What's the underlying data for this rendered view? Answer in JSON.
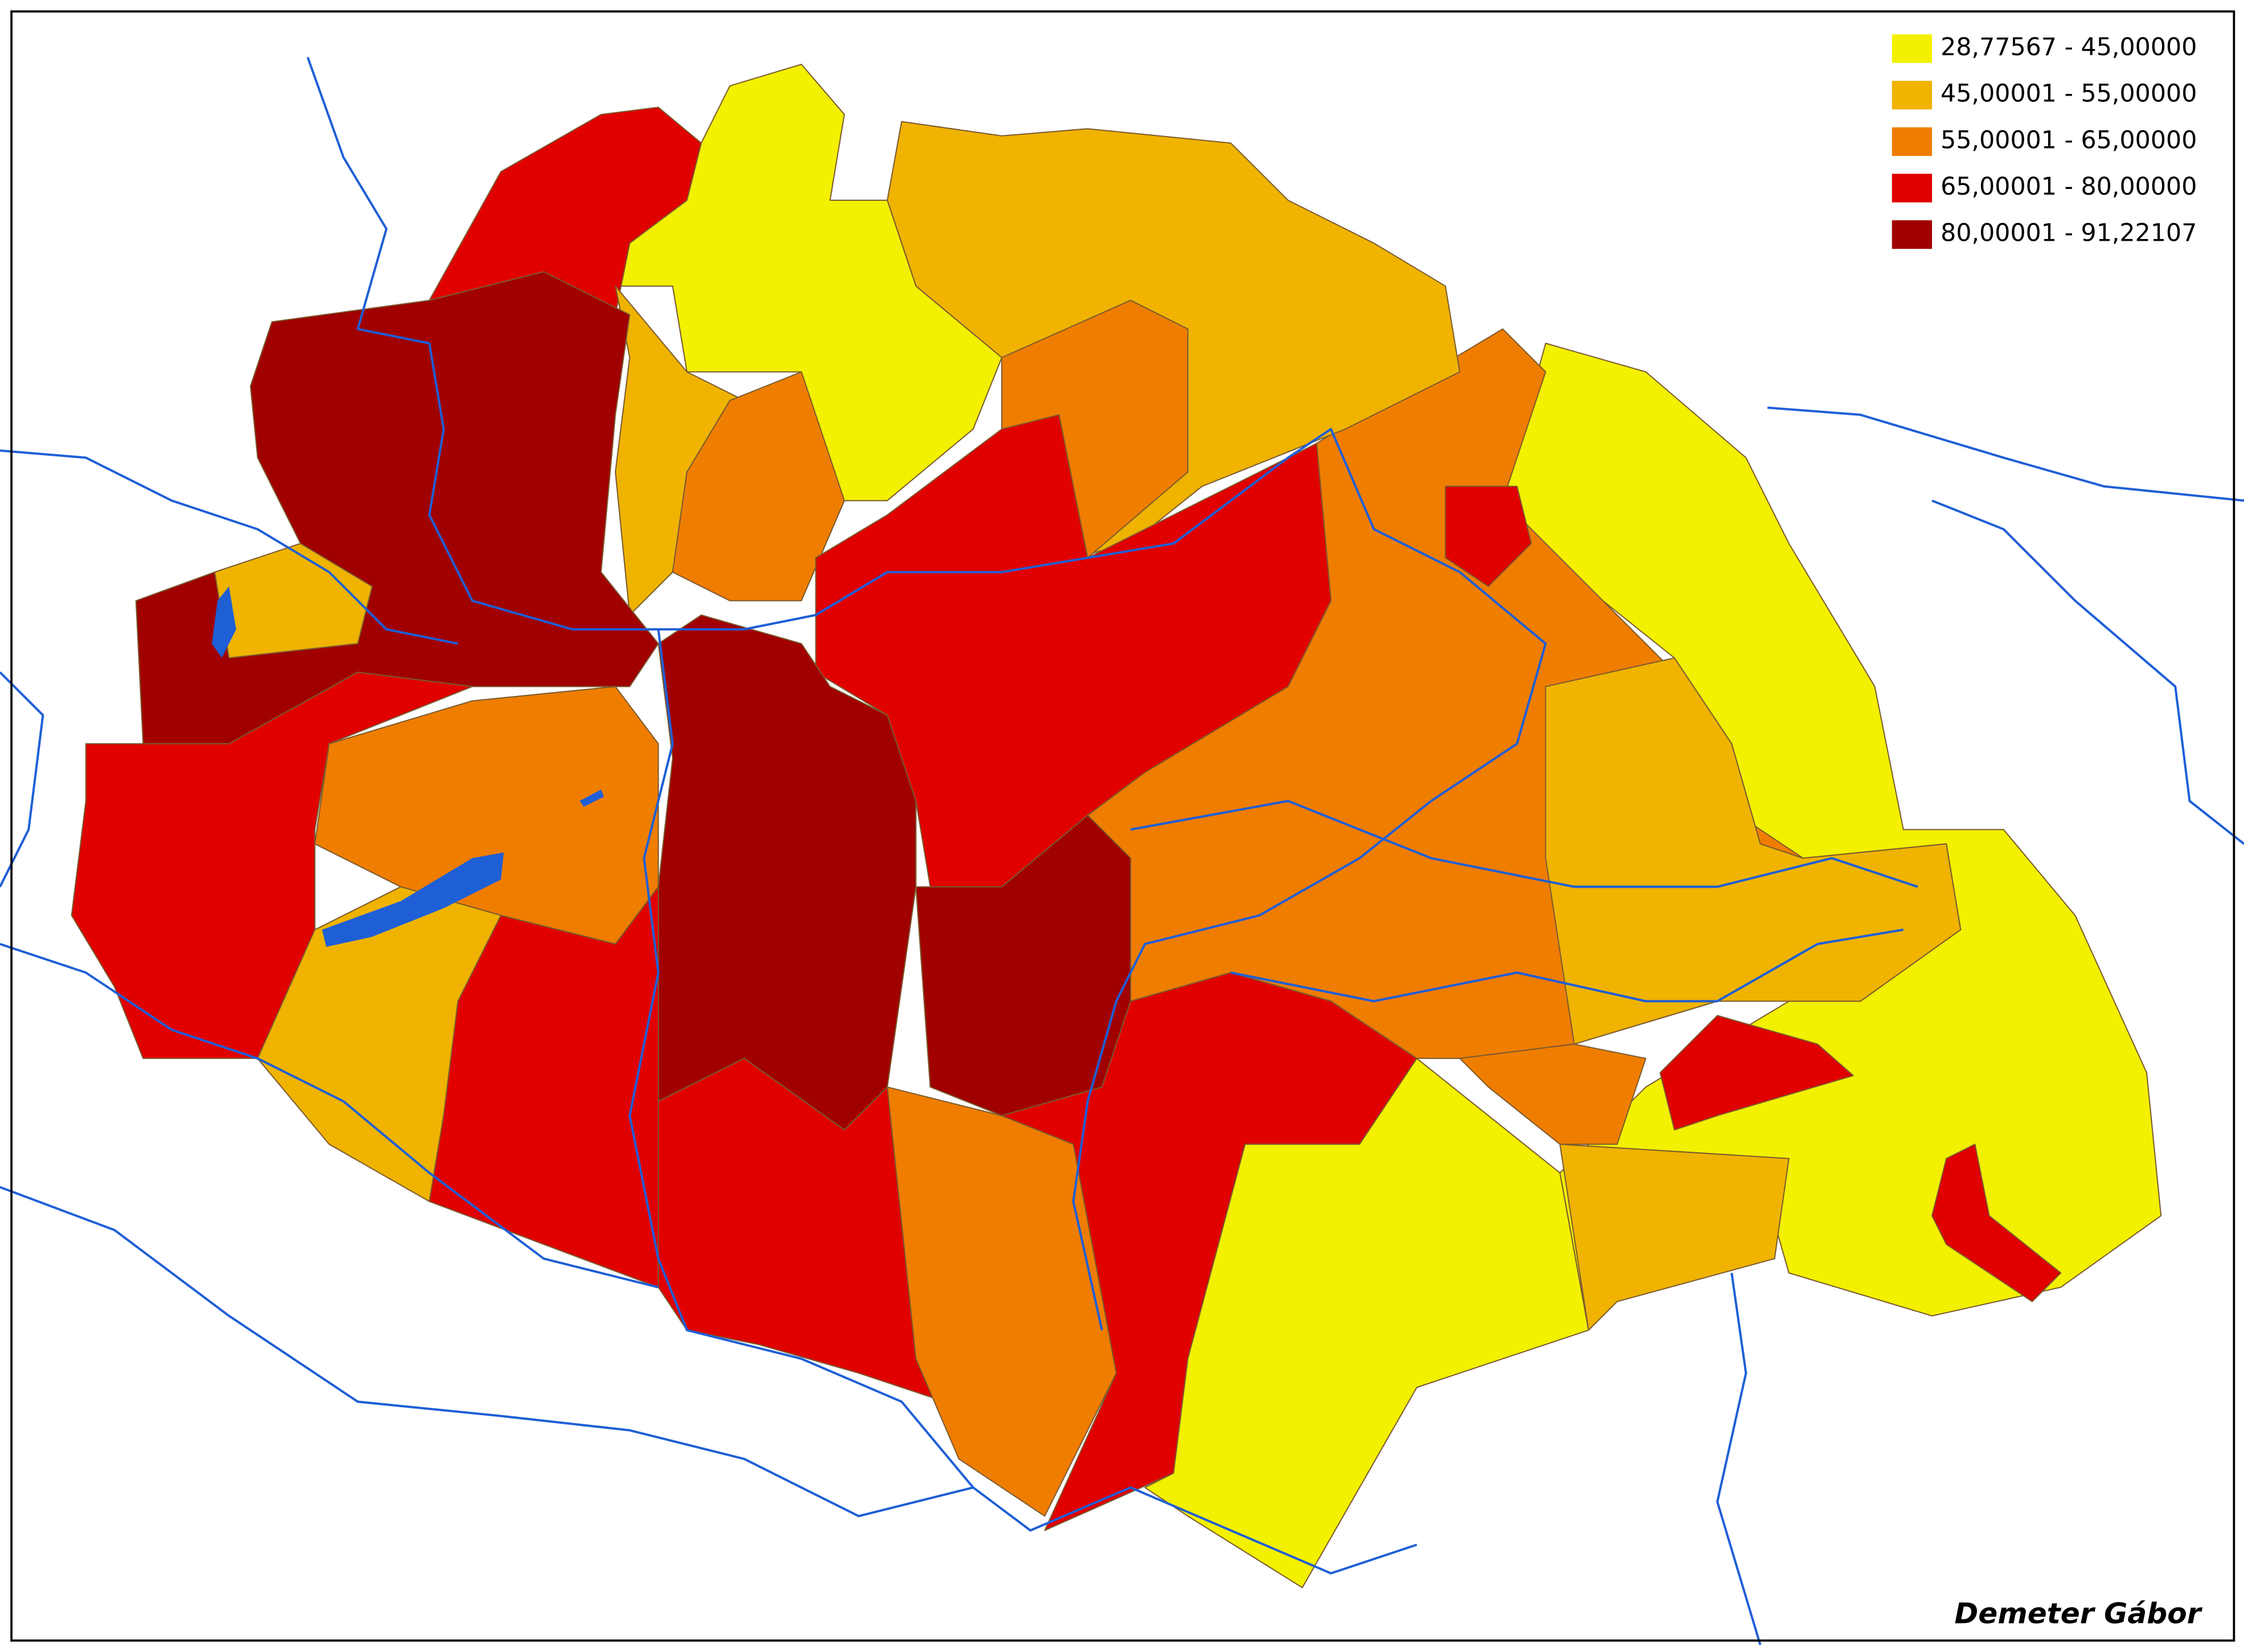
{
  "legend": {
    "items": [
      {
        "label": "28,77567 - 45,00000",
        "color": "#f3f000"
      },
      {
        "label": "45,00001 - 55,00000",
        "color": "#efb300"
      },
      {
        "label": "55,00001 - 65,00000",
        "color": "#ef7d00"
      },
      {
        "label": "65,00001 - 80,00000",
        "color": "#e00000"
      },
      {
        "label": "80,00001 - 91,22107",
        "color": "#a00000"
      }
    ]
  },
  "credit": "Demeter Gábor"
}
